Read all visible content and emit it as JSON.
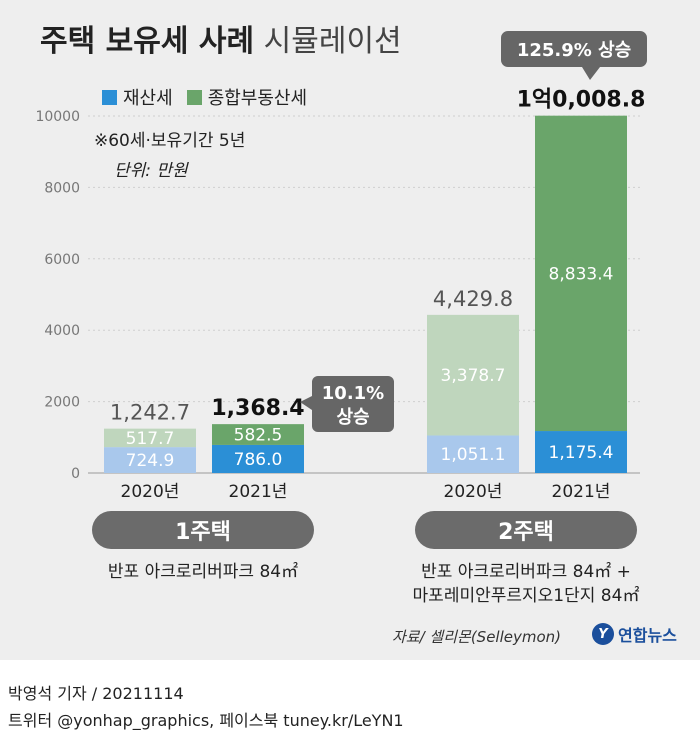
{
  "header": {
    "title_bold": "주택 보유세 사례",
    "title_light": "시뮬레이션"
  },
  "legend": [
    {
      "label": "재산세",
      "color": "#2b8fd6"
    },
    {
      "label": "종합부동산세",
      "color": "#6aa56a"
    }
  ],
  "note": "※60세·보유기간 5년",
  "unit": "단위: 만원",
  "chart_data": {
    "type": "bar",
    "stacked": true,
    "ylim": [
      0,
      10000
    ],
    "yticks": [
      0,
      2000,
      4000,
      6000,
      8000,
      10000
    ],
    "ytick_labels": [
      "0",
      "2000",
      "4000",
      "6000",
      "8000",
      "10000"
    ],
    "categories": [
      "2020년",
      "2021년",
      "2020년",
      "2021년"
    ],
    "series": [
      {
        "name": "재산세",
        "values": [
          724.9,
          786.0,
          1051.1,
          1175.4
        ],
        "labels": [
          "724.9",
          "786.0",
          "1,051.1",
          "1,175.4"
        ]
      },
      {
        "name": "종합부동산세",
        "values": [
          517.7,
          582.5,
          3378.7,
          8833.4
        ],
        "labels": [
          "517.7",
          "582.5",
          "3,378.7",
          "8,833.4"
        ]
      }
    ],
    "totals": [
      1242.7,
      1368.4,
      4429.8,
      10008.8
    ],
    "total_labels": [
      "1,242.7",
      "1,368.4",
      "4,429.8",
      "1억0,008.8"
    ],
    "callouts": [
      {
        "text_line1": "10.1%",
        "text_line2": "상승"
      },
      {
        "text_line1": "125.9% 상승",
        "text_line2": ""
      }
    ]
  },
  "groups": [
    {
      "label": "1주택",
      "desc_line1": "반포 아크로리버파크 84㎡",
      "desc_line2": ""
    },
    {
      "label": "2주택",
      "desc_line1": "반포 아크로리버파크 84㎡ +",
      "desc_line2": "마포레미안푸르지오1단지 84㎡"
    }
  ],
  "source": "자료/ 셀리몬(Selleymon)",
  "logo": {
    "mark": "Y",
    "text": "연합뉴스"
  },
  "footer": {
    "line1": "박영석 기자 /  20211114",
    "line2": "트위터 @yonhap_graphics, 페이스북 tuney.kr/LeYN1"
  },
  "colors": {
    "tax_dark": "#2b8fd6",
    "tax_light": "#a9c8ec",
    "comp_dark": "#6aa56a",
    "comp_light": "#bfd6bd",
    "callout": "#666666"
  }
}
